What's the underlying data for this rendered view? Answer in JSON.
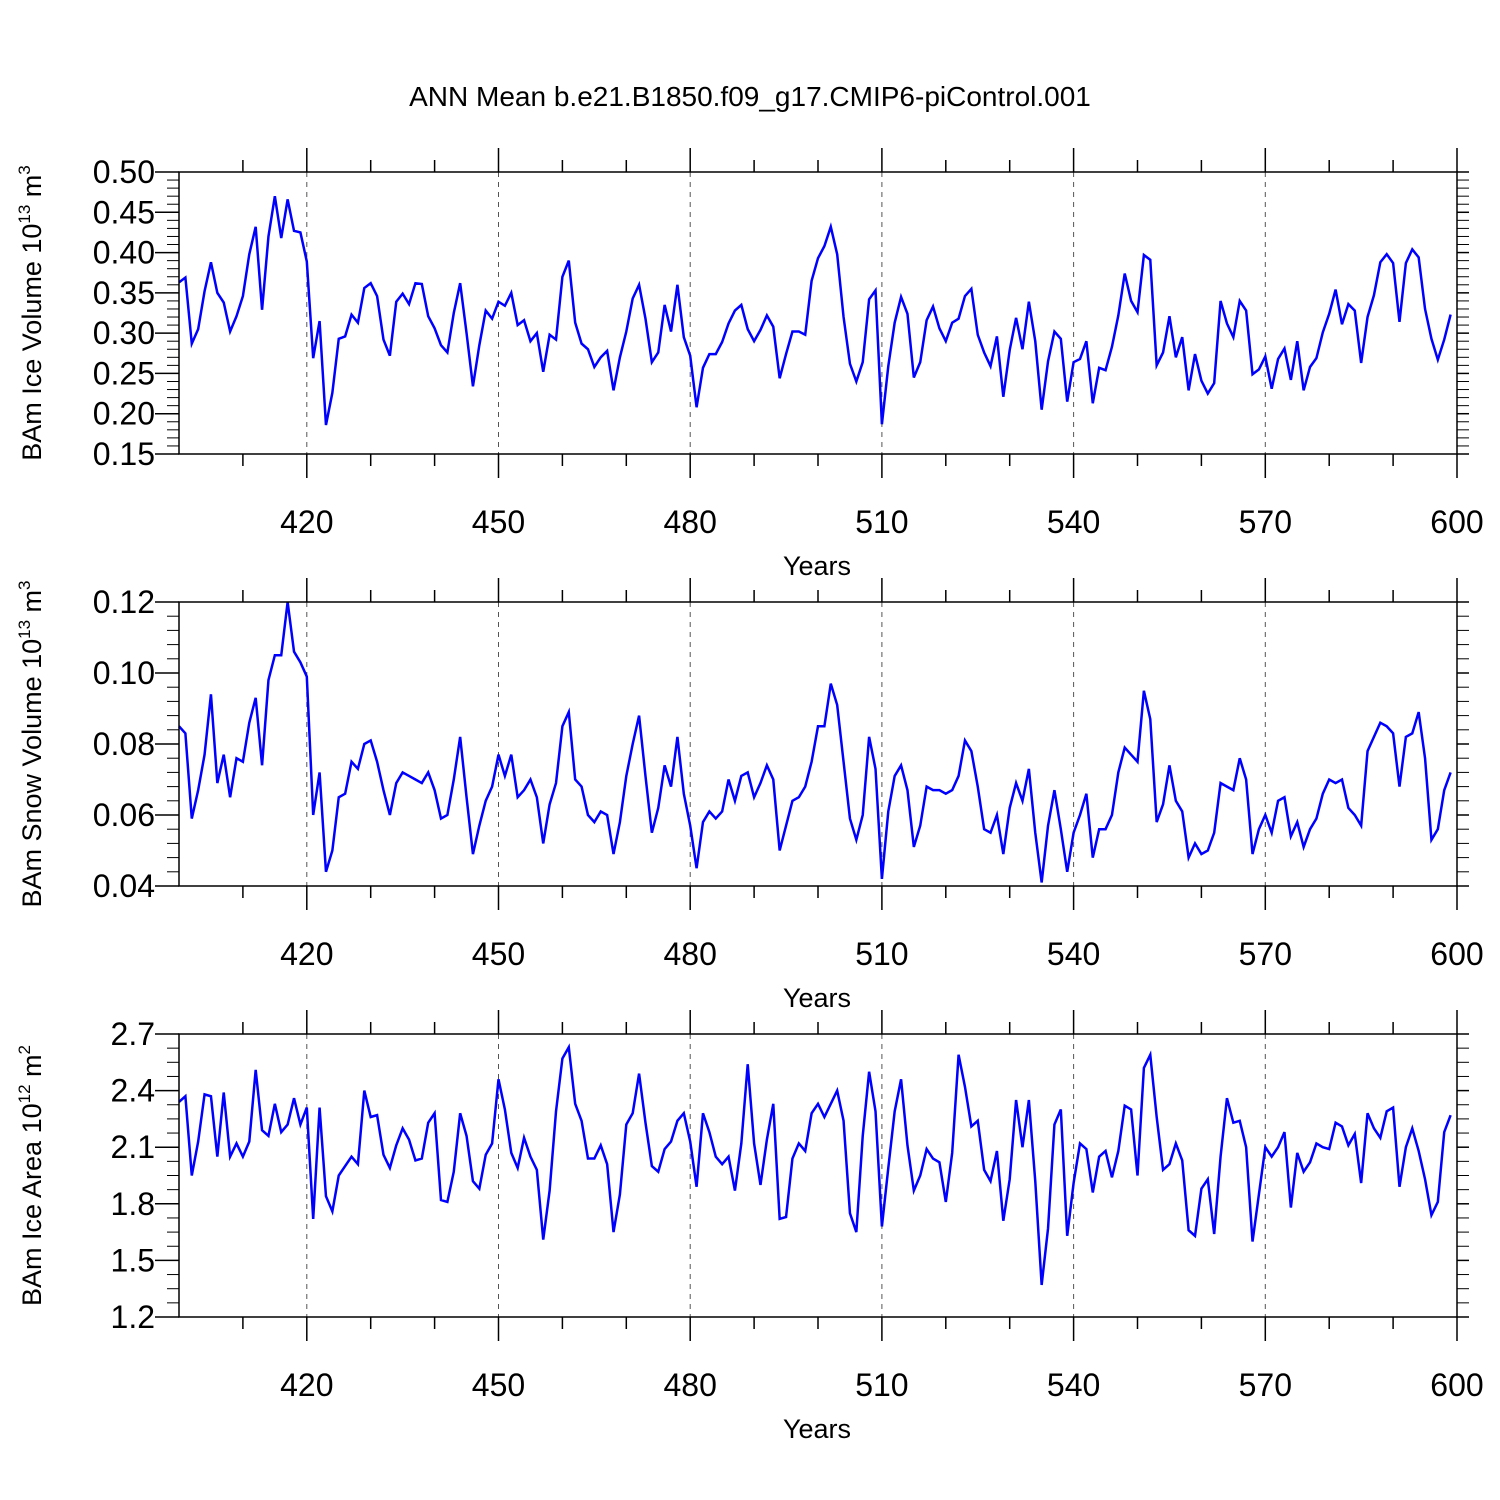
{
  "title": "ANN Mean b.e21.B1850.f09_g17.CMIP6-piControl.001",
  "line_color": "#0000ff",
  "chart_data": [
    {
      "type": "line",
      "xlabel": "Years",
      "ylabel": {
        "prefix": "BAm Ice Volume 10",
        "exp": "13",
        "unit": " m",
        "unit_exp": "3"
      },
      "xlim": [
        400,
        600
      ],
      "ylim": [
        0.15,
        0.5
      ],
      "yticks": [
        "0.15",
        "0.20",
        "0.25",
        "0.30",
        "0.35",
        "0.40",
        "0.45",
        "0.50"
      ],
      "xticks": [
        "420",
        "450",
        "480",
        "510",
        "540",
        "570",
        "600"
      ],
      "x_start": 400,
      "values": [
        0.363,
        0.369,
        0.287,
        0.305,
        0.352,
        0.388,
        0.35,
        0.338,
        0.302,
        0.321,
        0.346,
        0.398,
        0.432,
        0.329,
        0.42,
        0.47,
        0.418,
        0.466,
        0.427,
        0.425,
        0.389,
        0.269,
        0.315,
        0.186,
        0.226,
        0.293,
        0.296,
        0.323,
        0.313,
        0.356,
        0.362,
        0.346,
        0.292,
        0.272,
        0.339,
        0.349,
        0.336,
        0.362,
        0.361,
        0.321,
        0.306,
        0.285,
        0.276,
        0.325,
        0.362,
        0.3,
        0.234,
        0.285,
        0.328,
        0.318,
        0.339,
        0.334,
        0.35,
        0.31,
        0.316,
        0.29,
        0.3,
        0.252,
        0.298,
        0.292,
        0.37,
        0.39,
        0.313,
        0.287,
        0.28,
        0.258,
        0.27,
        0.278,
        0.229,
        0.27,
        0.302,
        0.343,
        0.36,
        0.318,
        0.264,
        0.276,
        0.335,
        0.302,
        0.36,
        0.295,
        0.272,
        0.208,
        0.257,
        0.274,
        0.274,
        0.289,
        0.312,
        0.328,
        0.335,
        0.305,
        0.29,
        0.304,
        0.322,
        0.308,
        0.244,
        0.274,
        0.302,
        0.302,
        0.298,
        0.365,
        0.393,
        0.408,
        0.432,
        0.398,
        0.32,
        0.262,
        0.24,
        0.264,
        0.342,
        0.353,
        0.187,
        0.259,
        0.313,
        0.345,
        0.324,
        0.245,
        0.264,
        0.316,
        0.333,
        0.306,
        0.29,
        0.313,
        0.318,
        0.346,
        0.355,
        0.298,
        0.276,
        0.259,
        0.296,
        0.221,
        0.279,
        0.319,
        0.28,
        0.339,
        0.29,
        0.205,
        0.265,
        0.302,
        0.293,
        0.215,
        0.264,
        0.268,
        0.29,
        0.213,
        0.257,
        0.254,
        0.283,
        0.322,
        0.374,
        0.34,
        0.326,
        0.397,
        0.391,
        0.26,
        0.276,
        0.321,
        0.27,
        0.295,
        0.229,
        0.274,
        0.241,
        0.225,
        0.238,
        0.34,
        0.312,
        0.295,
        0.34,
        0.328,
        0.249,
        0.255,
        0.271,
        0.231,
        0.268,
        0.281,
        0.242,
        0.29,
        0.229,
        0.258,
        0.269,
        0.301,
        0.324,
        0.354,
        0.311,
        0.336,
        0.328,
        0.263,
        0.32,
        0.347,
        0.388,
        0.398,
        0.387,
        0.314,
        0.387,
        0.404,
        0.394,
        0.33,
        0.293,
        0.267,
        0.292,
        0.323
      ]
    },
    {
      "type": "line",
      "xlabel": "Years",
      "ylabel": {
        "prefix": "BAm Snow Volume 10",
        "exp": "13",
        "unit": " m",
        "unit_exp": "3"
      },
      "xlim": [
        400,
        600
      ],
      "ylim": [
        0.04,
        0.12
      ],
      "yticks": [
        "0.04",
        "0.06",
        "0.08",
        "0.10",
        "0.12"
      ],
      "xticks": [
        "420",
        "450",
        "480",
        "510",
        "540",
        "570",
        "600"
      ],
      "x_start": 400,
      "values": [
        0.085,
        0.083,
        0.059,
        0.067,
        0.077,
        0.094,
        0.069,
        0.077,
        0.065,
        0.076,
        0.075,
        0.086,
        0.093,
        0.074,
        0.098,
        0.105,
        0.105,
        0.12,
        0.106,
        0.103,
        0.099,
        0.06,
        0.072,
        0.044,
        0.05,
        0.065,
        0.066,
        0.075,
        0.073,
        0.08,
        0.081,
        0.075,
        0.067,
        0.06,
        0.069,
        0.072,
        0.071,
        0.07,
        0.069,
        0.072,
        0.067,
        0.059,
        0.06,
        0.07,
        0.082,
        0.065,
        0.049,
        0.057,
        0.064,
        0.068,
        0.077,
        0.071,
        0.077,
        0.065,
        0.067,
        0.07,
        0.065,
        0.052,
        0.063,
        0.069,
        0.085,
        0.089,
        0.07,
        0.068,
        0.06,
        0.058,
        0.061,
        0.06,
        0.049,
        0.058,
        0.071,
        0.08,
        0.088,
        0.071,
        0.055,
        0.062,
        0.074,
        0.068,
        0.082,
        0.066,
        0.057,
        0.045,
        0.058,
        0.061,
        0.059,
        0.061,
        0.07,
        0.064,
        0.071,
        0.072,
        0.065,
        0.069,
        0.074,
        0.07,
        0.05,
        0.057,
        0.064,
        0.065,
        0.068,
        0.075,
        0.085,
        0.085,
        0.097,
        0.091,
        0.075,
        0.059,
        0.053,
        0.06,
        0.082,
        0.073,
        0.042,
        0.061,
        0.071,
        0.074,
        0.067,
        0.051,
        0.057,
        0.068,
        0.067,
        0.067,
        0.066,
        0.067,
        0.071,
        0.081,
        0.078,
        0.068,
        0.056,
        0.055,
        0.06,
        0.049,
        0.062,
        0.069,
        0.064,
        0.073,
        0.055,
        0.041,
        0.057,
        0.067,
        0.056,
        0.044,
        0.055,
        0.06,
        0.066,
        0.048,
        0.056,
        0.056,
        0.06,
        0.072,
        0.079,
        0.077,
        0.075,
        0.095,
        0.087,
        0.058,
        0.063,
        0.074,
        0.064,
        0.061,
        0.048,
        0.052,
        0.049,
        0.05,
        0.055,
        0.069,
        0.068,
        0.067,
        0.076,
        0.07,
        0.049,
        0.056,
        0.06,
        0.055,
        0.064,
        0.065,
        0.054,
        0.058,
        0.051,
        0.056,
        0.059,
        0.066,
        0.07,
        0.069,
        0.07,
        0.062,
        0.06,
        0.057,
        0.078,
        0.082,
        0.086,
        0.085,
        0.083,
        0.068,
        0.082,
        0.083,
        0.089,
        0.076,
        0.053,
        0.056,
        0.067,
        0.072
      ]
    },
    {
      "type": "line",
      "xlabel": "Years",
      "ylabel": {
        "prefix": "BAm Ice Area 10",
        "exp": "12",
        "unit": " m",
        "unit_exp": "2"
      },
      "xlim": [
        400,
        600
      ],
      "ylim": [
        1.2,
        2.7
      ],
      "yticks": [
        "1.2",
        "1.5",
        "1.8",
        "2.1",
        "2.4",
        "2.7"
      ],
      "xticks": [
        "420",
        "450",
        "480",
        "510",
        "540",
        "570",
        "600"
      ],
      "x_start": 400,
      "values": [
        2.34,
        2.37,
        1.95,
        2.13,
        2.38,
        2.37,
        2.05,
        2.39,
        2.05,
        2.12,
        2.05,
        2.13,
        2.51,
        2.19,
        2.16,
        2.33,
        2.18,
        2.22,
        2.36,
        2.22,
        2.31,
        1.72,
        2.31,
        1.84,
        1.76,
        1.95,
        2.0,
        2.05,
        2.01,
        2.4,
        2.26,
        2.27,
        2.06,
        1.99,
        2.11,
        2.2,
        2.14,
        2.03,
        2.04,
        2.23,
        2.28,
        1.82,
        1.81,
        1.97,
        2.28,
        2.16,
        1.92,
        1.88,
        2.06,
        2.12,
        2.46,
        2.3,
        2.07,
        1.99,
        2.15,
        2.05,
        1.98,
        1.61,
        1.87,
        2.29,
        2.57,
        2.63,
        2.33,
        2.24,
        2.04,
        2.04,
        2.11,
        2.01,
        1.65,
        1.85,
        2.22,
        2.28,
        2.49,
        2.23,
        2.0,
        1.97,
        2.09,
        2.13,
        2.24,
        2.28,
        2.13,
        1.89,
        2.28,
        2.18,
        2.05,
        2.01,
        2.05,
        1.87,
        2.12,
        2.54,
        2.12,
        1.9,
        2.14,
        2.33,
        1.72,
        1.73,
        2.04,
        2.12,
        2.08,
        2.28,
        2.33,
        2.26,
        2.33,
        2.4,
        2.24,
        1.75,
        1.65,
        2.16,
        2.5,
        2.29,
        1.68,
        1.99,
        2.29,
        2.46,
        2.11,
        1.87,
        1.95,
        2.09,
        2.04,
        2.02,
        1.81,
        2.07,
        2.59,
        2.42,
        2.21,
        2.24,
        1.98,
        1.92,
        2.08,
        1.71,
        1.93,
        2.35,
        2.1,
        2.35,
        1.92,
        1.37,
        1.67,
        2.22,
        2.3,
        1.63,
        1.91,
        2.12,
        2.09,
        1.86,
        2.05,
        2.08,
        1.94,
        2.08,
        2.32,
        2.3,
        1.95,
        2.52,
        2.59,
        2.26,
        1.98,
        2.01,
        2.12,
        2.03,
        1.66,
        1.63,
        1.88,
        1.93,
        1.64,
        2.05,
        2.36,
        2.23,
        2.24,
        2.1,
        1.6,
        1.85,
        2.1,
        2.05,
        2.1,
        2.18,
        1.78,
        2.07,
        1.97,
        2.02,
        2.12,
        2.1,
        2.09,
        2.23,
        2.21,
        2.11,
        2.17,
        1.91,
        2.28,
        2.2,
        2.15,
        2.29,
        2.31,
        1.89,
        2.1,
        2.2,
        2.08,
        1.93,
        1.74,
        1.81,
        2.18,
        2.27
      ]
    }
  ]
}
